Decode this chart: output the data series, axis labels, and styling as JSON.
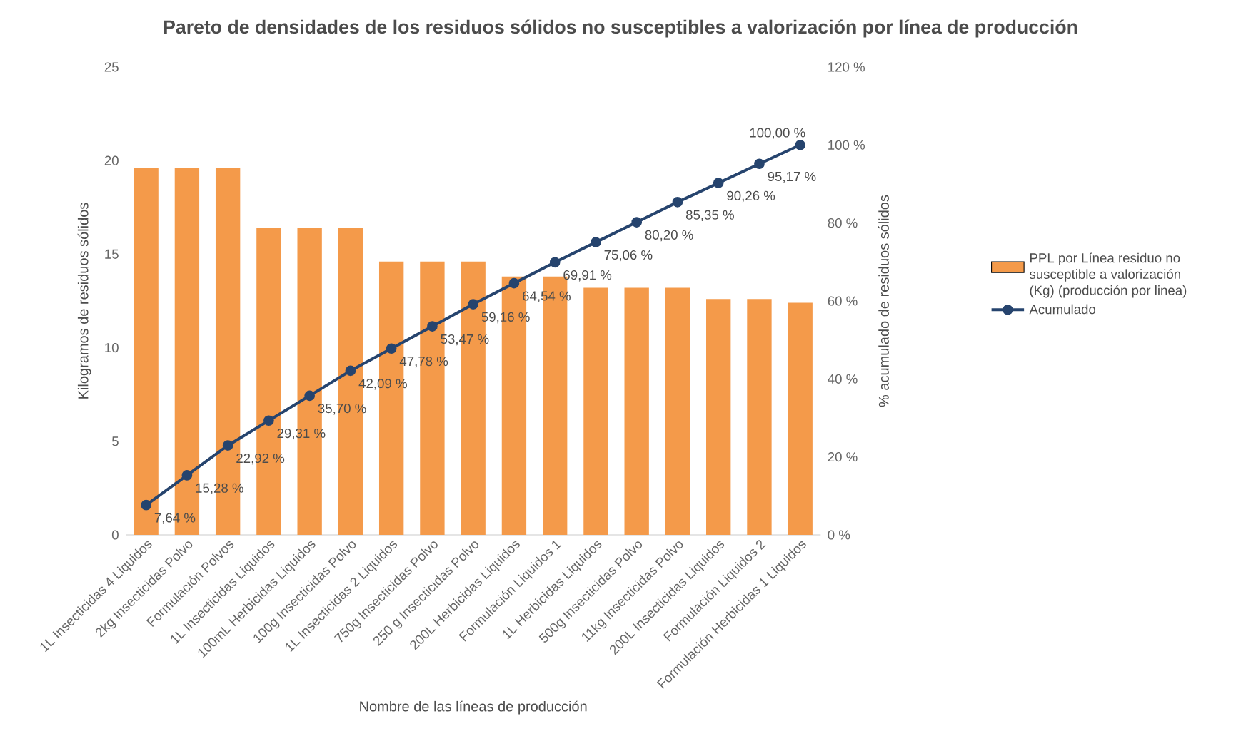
{
  "chart_data": {
    "type": "bar",
    "title": "Pareto de densidades de los residuos sólidos no susceptibles a valorización por línea de producción",
    "xlabel": "Nombre de las líneas de producción",
    "ylabel": "Kilogramos de residuos sólidos",
    "y2label": "% acumulado de residuos sólidos",
    "categories": [
      "1L Insecticidas 4 Liquidos",
      "2kg Insecticidas Polvo",
      "Formulación Polvos",
      "1L Insecticidas Liquidos",
      "100mL Herbicidas Liquidos",
      "100g Insecticidas Polvo",
      "1L Insecticidas 2 Liquidos",
      "750g Insecticidas Polvo",
      "250 g Insecticidas Polvo",
      "200L Herbicidas Liquidos",
      "Formulación Liquidos 1",
      "1L Herbicidas Liquidos",
      "500g Insecticidas Polvo",
      "11kg Insecticidas Polvo",
      "200L Insecticidas Liquidos",
      "Formulación Liquidos 2",
      "Formulación Herbicidas 1 Liquidos"
    ],
    "series": [
      {
        "name": "PPL por Línea residuo no susceptible a valorización (Kg) (producción por linea)",
        "color": "#f49a4a",
        "values": [
          19.6,
          19.6,
          19.6,
          16.4,
          16.4,
          16.4,
          14.6,
          14.6,
          14.6,
          13.8,
          13.8,
          13.2,
          13.2,
          13.2,
          12.6,
          12.6,
          12.4
        ]
      },
      {
        "type": "line",
        "name": "Acumulado",
        "color": "#26446e",
        "axis": "y2",
        "marker": "circle",
        "values": [
          7.64,
          15.28,
          22.92,
          29.31,
          35.7,
          42.09,
          47.78,
          53.47,
          59.16,
          64.54,
          69.91,
          75.06,
          80.2,
          85.35,
          90.26,
          95.17,
          100.0
        ],
        "value_labels": [
          "7,64 %",
          "15,28 %",
          "22,92 %",
          "29,31 %",
          "35,70 %",
          "42,09 %",
          "47,78 %",
          "53,47 %",
          "59,16 %",
          "64,54 %",
          "69,91 %",
          "75,06 %",
          "80,20 %",
          "85,35 %",
          "90,26 %",
          "95,17 %",
          "100,00 %"
        ]
      }
    ],
    "ylim": [
      0,
      25
    ],
    "yticks": [
      0,
      5,
      10,
      15,
      20,
      25
    ],
    "y2lim": [
      0,
      120
    ],
    "y2ticks": [
      {
        "value": 0,
        "label": "0 %"
      },
      {
        "value": 20,
        "label": "20 %"
      },
      {
        "value": 40,
        "label": "40 %"
      },
      {
        "value": 60,
        "label": "60 %"
      },
      {
        "value": 80,
        "label": "80 %"
      },
      {
        "value": 100,
        "label": "100 %"
      },
      {
        "value": 120,
        "label": "120 %"
      }
    ],
    "legend": "right"
  }
}
